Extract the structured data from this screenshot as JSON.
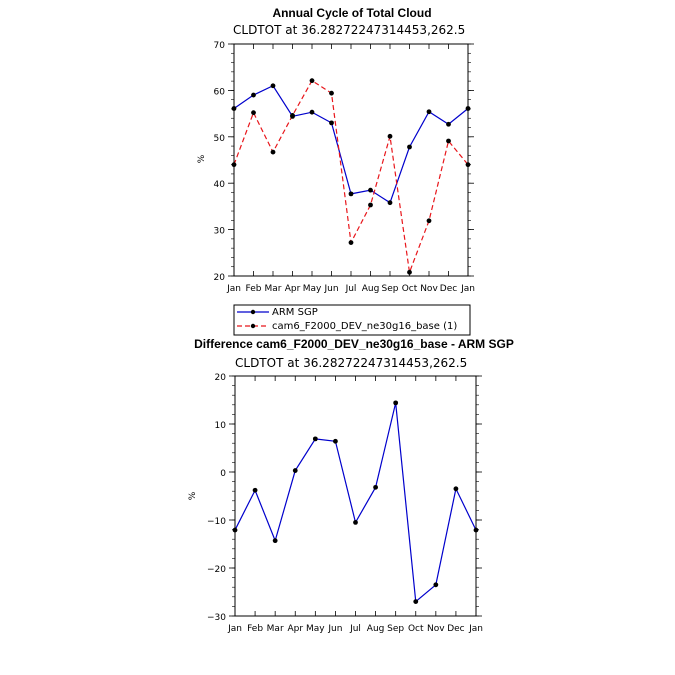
{
  "chart_data": [
    {
      "type": "line",
      "title": "Annual Cycle of Total Cloud",
      "subtitle": "CLDTOT at 36.28272247314453,262.5",
      "ylabel": "%",
      "ylim": [
        20,
        70
      ],
      "yticks": [
        20,
        30,
        40,
        50,
        60,
        70
      ],
      "categories": [
        "Jan",
        "Feb",
        "Mar",
        "Apr",
        "May",
        "Jun",
        "Jul",
        "Aug",
        "Sep",
        "Oct",
        "Nov",
        "Dec",
        "Jan"
      ],
      "series": [
        {
          "name": "ARM SGP",
          "color": "#0000cc",
          "style": "solid",
          "values": [
            56.1,
            59.0,
            61.0,
            54.4,
            55.3,
            53.0,
            37.7,
            38.5,
            35.8,
            47.8,
            55.4,
            52.7,
            56.1
          ]
        },
        {
          "name": "cam6_F2000_DEV_ne30g16_base (1)",
          "color": "#e8161b",
          "style": "dashed",
          "values": [
            44.0,
            55.2,
            46.7,
            54.6,
            62.1,
            59.4,
            27.2,
            35.3,
            50.1,
            20.8,
            31.9,
            49.1,
            44.0
          ]
        }
      ],
      "grid": false,
      "legend": "bottom"
    },
    {
      "type": "line",
      "title": "Difference cam6_F2000_DEV_ne30g16_base - ARM SGP",
      "subtitle": "CLDTOT at 36.28272247314453,262.5",
      "ylabel": "%",
      "ylim": [
        -30,
        20
      ],
      "yticks": [
        -30,
        -20,
        -10,
        0,
        10,
        20
      ],
      "ytick_labels": [
        "−30",
        "−20",
        "−10",
        "0",
        "10",
        "20"
      ],
      "categories": [
        "Jan",
        "Feb",
        "Mar",
        "Apr",
        "May",
        "Jun",
        "Jul",
        "Aug",
        "Sep",
        "Oct",
        "Nov",
        "Dec",
        "Jan"
      ],
      "series": [
        {
          "color": "#0000cc",
          "style": "solid",
          "values": [
            -12.1,
            -3.8,
            -14.3,
            0.3,
            6.9,
            6.4,
            -10.5,
            -3.2,
            14.4,
            -27.0,
            -23.5,
            -3.5,
            -12.1
          ]
        }
      ],
      "grid": false
    }
  ]
}
